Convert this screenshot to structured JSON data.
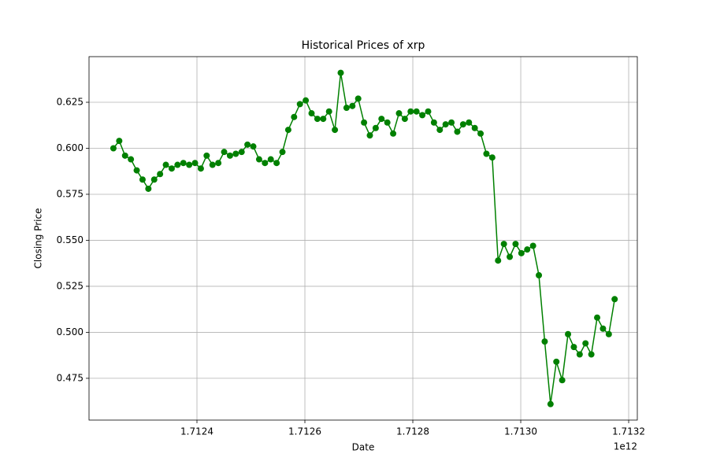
{
  "chart_data": {
    "type": "line",
    "title": "Historical Prices of xrp",
    "x_label": "Date",
    "y_label": "Closing Price",
    "x_offset_label": "1e12",
    "color": "green",
    "grid": true,
    "xlim": [
      1712200000000,
      1713216000000
    ],
    "ylim": [
      0.4523,
      0.6498
    ],
    "xticks": [
      {
        "value": 1712400000000,
        "label": "1.7124"
      },
      {
        "value": 1712600000000,
        "label": "1.7126"
      },
      {
        "value": 1712800000000,
        "label": "1.7128"
      },
      {
        "value": 1713000000000,
        "label": "1.7130"
      },
      {
        "value": 1713200000000,
        "label": "1.7132"
      }
    ],
    "yticks": [
      {
        "value": 0.475,
        "label": "0.475"
      },
      {
        "value": 0.5,
        "label": "0.500"
      },
      {
        "value": 0.525,
        "label": "0.525"
      },
      {
        "value": 0.55,
        "label": "0.550"
      },
      {
        "value": 0.575,
        "label": "0.575"
      },
      {
        "value": 0.6,
        "label": "0.600"
      },
      {
        "value": 0.625,
        "label": "0.625"
      }
    ],
    "x": [
      1712245200000,
      1712256000000,
      1712266800000,
      1712277600000,
      1712288400000,
      1712299200000,
      1712310000000,
      1712320800000,
      1712331600000,
      1712342400000,
      1712353200000,
      1712364000000,
      1712374800000,
      1712385600000,
      1712396400000,
      1712407200000,
      1712418000000,
      1712428800000,
      1712439600000,
      1712450400000,
      1712461200000,
      1712472000000,
      1712482800000,
      1712493600000,
      1712504400000,
      1712515200000,
      1712526000000,
      1712536800000,
      1712547600000,
      1712558400000,
      1712569200000,
      1712580000000,
      1712590800000,
      1712601600000,
      1712612400000,
      1712623200000,
      1712634000000,
      1712644800000,
      1712655600000,
      1712666400000,
      1712677200000,
      1712688000000,
      1712698800000,
      1712709600000,
      1712720400000,
      1712731200000,
      1712742000000,
      1712752800000,
      1712763600000,
      1712774400000,
      1712785200000,
      1712796000000,
      1712806800000,
      1712817600000,
      1712828400000,
      1712839200000,
      1712850000000,
      1712860800000,
      1712871600000,
      1712882400000,
      1712893200000,
      1712904000000,
      1712914800000,
      1712925600000,
      1712936400000,
      1712947200000,
      1712958000000,
      1712968800000,
      1712979600000,
      1712990400000,
      1713001200000,
      1713012000000,
      1713022800000,
      1713033600000,
      1713044400000,
      1713055200000,
      1713066000000,
      1713076800000,
      1713087600000,
      1713098400000,
      1713109200000,
      1713120000000,
      1713130800000,
      1713141600000,
      1713152400000,
      1713163200000,
      1713174000000
    ],
    "values": [
      0.6,
      0.604,
      0.596,
      0.594,
      0.588,
      0.583,
      0.578,
      0.583,
      0.586,
      0.591,
      0.589,
      0.591,
      0.592,
      0.591,
      0.592,
      0.589,
      0.596,
      0.591,
      0.592,
      0.598,
      0.596,
      0.597,
      0.598,
      0.602,
      0.601,
      0.594,
      0.592,
      0.594,
      0.592,
      0.598,
      0.61,
      0.617,
      0.624,
      0.626,
      0.619,
      0.616,
      0.616,
      0.62,
      0.61,
      0.641,
      0.622,
      0.623,
      0.627,
      0.614,
      0.607,
      0.611,
      0.616,
      0.614,
      0.608,
      0.619,
      0.616,
      0.62,
      0.62,
      0.618,
      0.62,
      0.614,
      0.61,
      0.613,
      0.614,
      0.609,
      0.613,
      0.614,
      0.611,
      0.608,
      0.597,
      0.595,
      0.539,
      0.548,
      0.541,
      0.548,
      0.543,
      0.545,
      0.547,
      0.531,
      0.495,
      0.461,
      0.484,
      0.474,
      0.499,
      0.492,
      0.488,
      0.494,
      0.488,
      0.508,
      0.502,
      0.499,
      0.518
    ]
  }
}
